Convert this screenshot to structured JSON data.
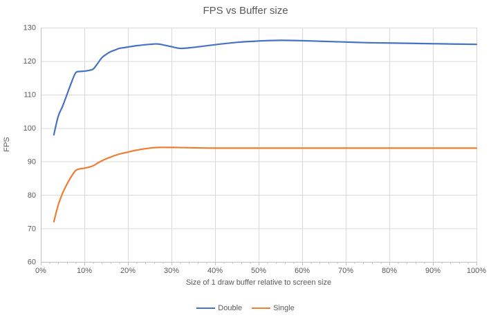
{
  "chart_data": {
    "type": "line",
    "title": "FPS vs Buffer size",
    "xlabel": "Size of 1 draw buffer relative to screen size",
    "ylabel": "FPS",
    "xlim": [
      0,
      100
    ],
    "ylim": [
      60,
      130
    ],
    "x_major_ticks": [
      0,
      10,
      20,
      30,
      40,
      50,
      60,
      70,
      80,
      90,
      100
    ],
    "x_minor_tick_step": 2,
    "x_tick_suffix": "%",
    "y_ticks": [
      60,
      70,
      80,
      90,
      100,
      110,
      120,
      130
    ],
    "grid": true,
    "legend_position": "bottom",
    "colors": {
      "gridline": "#d9d9d9",
      "axis_line": "#bfbfbf",
      "tick_mark": "#bfbfbf",
      "text": "#595959"
    },
    "series": [
      {
        "name": "Double",
        "color": "#4472c4",
        "smooth": true,
        "points": [
          [
            3,
            98
          ],
          [
            4,
            103.5
          ],
          [
            5,
            106.5
          ],
          [
            6,
            110
          ],
          [
            7,
            113.5
          ],
          [
            8,
            116.5
          ],
          [
            9,
            116.9
          ],
          [
            10,
            117
          ],
          [
            11,
            117.2
          ],
          [
            12,
            117.6
          ],
          [
            13,
            119.2
          ],
          [
            14,
            121
          ],
          [
            15,
            122
          ],
          [
            16,
            122.8
          ],
          [
            17,
            123.3
          ],
          [
            18,
            123.8
          ],
          [
            19,
            124
          ],
          [
            20,
            124.2
          ],
          [
            22,
            124.6
          ],
          [
            25,
            125
          ],
          [
            27,
            125.1
          ],
          [
            30,
            124.3
          ],
          [
            32,
            123.8
          ],
          [
            35,
            124.1
          ],
          [
            40,
            124.9
          ],
          [
            45,
            125.6
          ],
          [
            50,
            126
          ],
          [
            55,
            126.2
          ],
          [
            60,
            126.1
          ],
          [
            65,
            125.9
          ],
          [
            70,
            125.7
          ],
          [
            75,
            125.5
          ],
          [
            80,
            125.4
          ],
          [
            85,
            125.3
          ],
          [
            90,
            125.2
          ],
          [
            95,
            125.1
          ],
          [
            100,
            125
          ]
        ]
      },
      {
        "name": "Single",
        "color": "#ed7d31",
        "smooth": true,
        "points": [
          [
            3,
            72
          ],
          [
            4,
            77
          ],
          [
            5,
            80.5
          ],
          [
            6,
            83.2
          ],
          [
            7,
            85.5
          ],
          [
            8,
            87.3
          ],
          [
            9,
            87.8
          ],
          [
            10,
            88
          ],
          [
            11,
            88.3
          ],
          [
            12,
            88.7
          ],
          [
            13,
            89.5
          ],
          [
            14,
            90.2
          ],
          [
            15,
            90.8
          ],
          [
            16,
            91.3
          ],
          [
            17,
            91.8
          ],
          [
            18,
            92.2
          ],
          [
            19,
            92.5
          ],
          [
            20,
            92.8
          ],
          [
            22,
            93.4
          ],
          [
            25,
            94
          ],
          [
            27,
            94.2
          ],
          [
            30,
            94.2
          ],
          [
            35,
            94.1
          ],
          [
            40,
            94
          ],
          [
            50,
            94
          ],
          [
            60,
            94
          ],
          [
            70,
            94
          ],
          [
            80,
            94
          ],
          [
            90,
            94
          ],
          [
            100,
            94
          ]
        ]
      }
    ]
  }
}
